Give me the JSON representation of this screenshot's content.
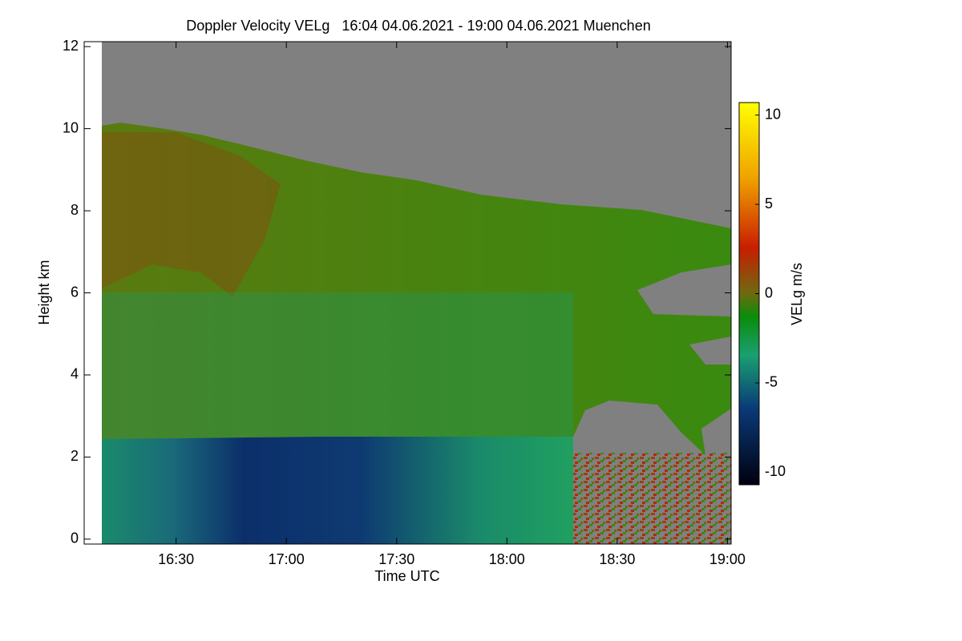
{
  "chart_data": {
    "type": "time-height",
    "title": "Doppler Velocity VELg   16:04 04.06.2021 - 19:00 04.06.2021 Muenchen",
    "xlabel": "Time UTC",
    "ylabel": "Height km",
    "xlim": [
      "16:05",
      "19:01"
    ],
    "xticks": [
      "16:30",
      "17:00",
      "17:30",
      "18:00",
      "18:30",
      "19:00"
    ],
    "ylim": [
      -0.12,
      12.12
    ],
    "yticks": [
      0,
      2,
      4,
      6,
      8,
      10,
      12
    ],
    "colorbar": {
      "label": "VELg m/s",
      "lim": [
        -10.7,
        10.7
      ],
      "ticks": [
        10,
        5,
        0,
        -5,
        -10
      ]
    }
  }
}
